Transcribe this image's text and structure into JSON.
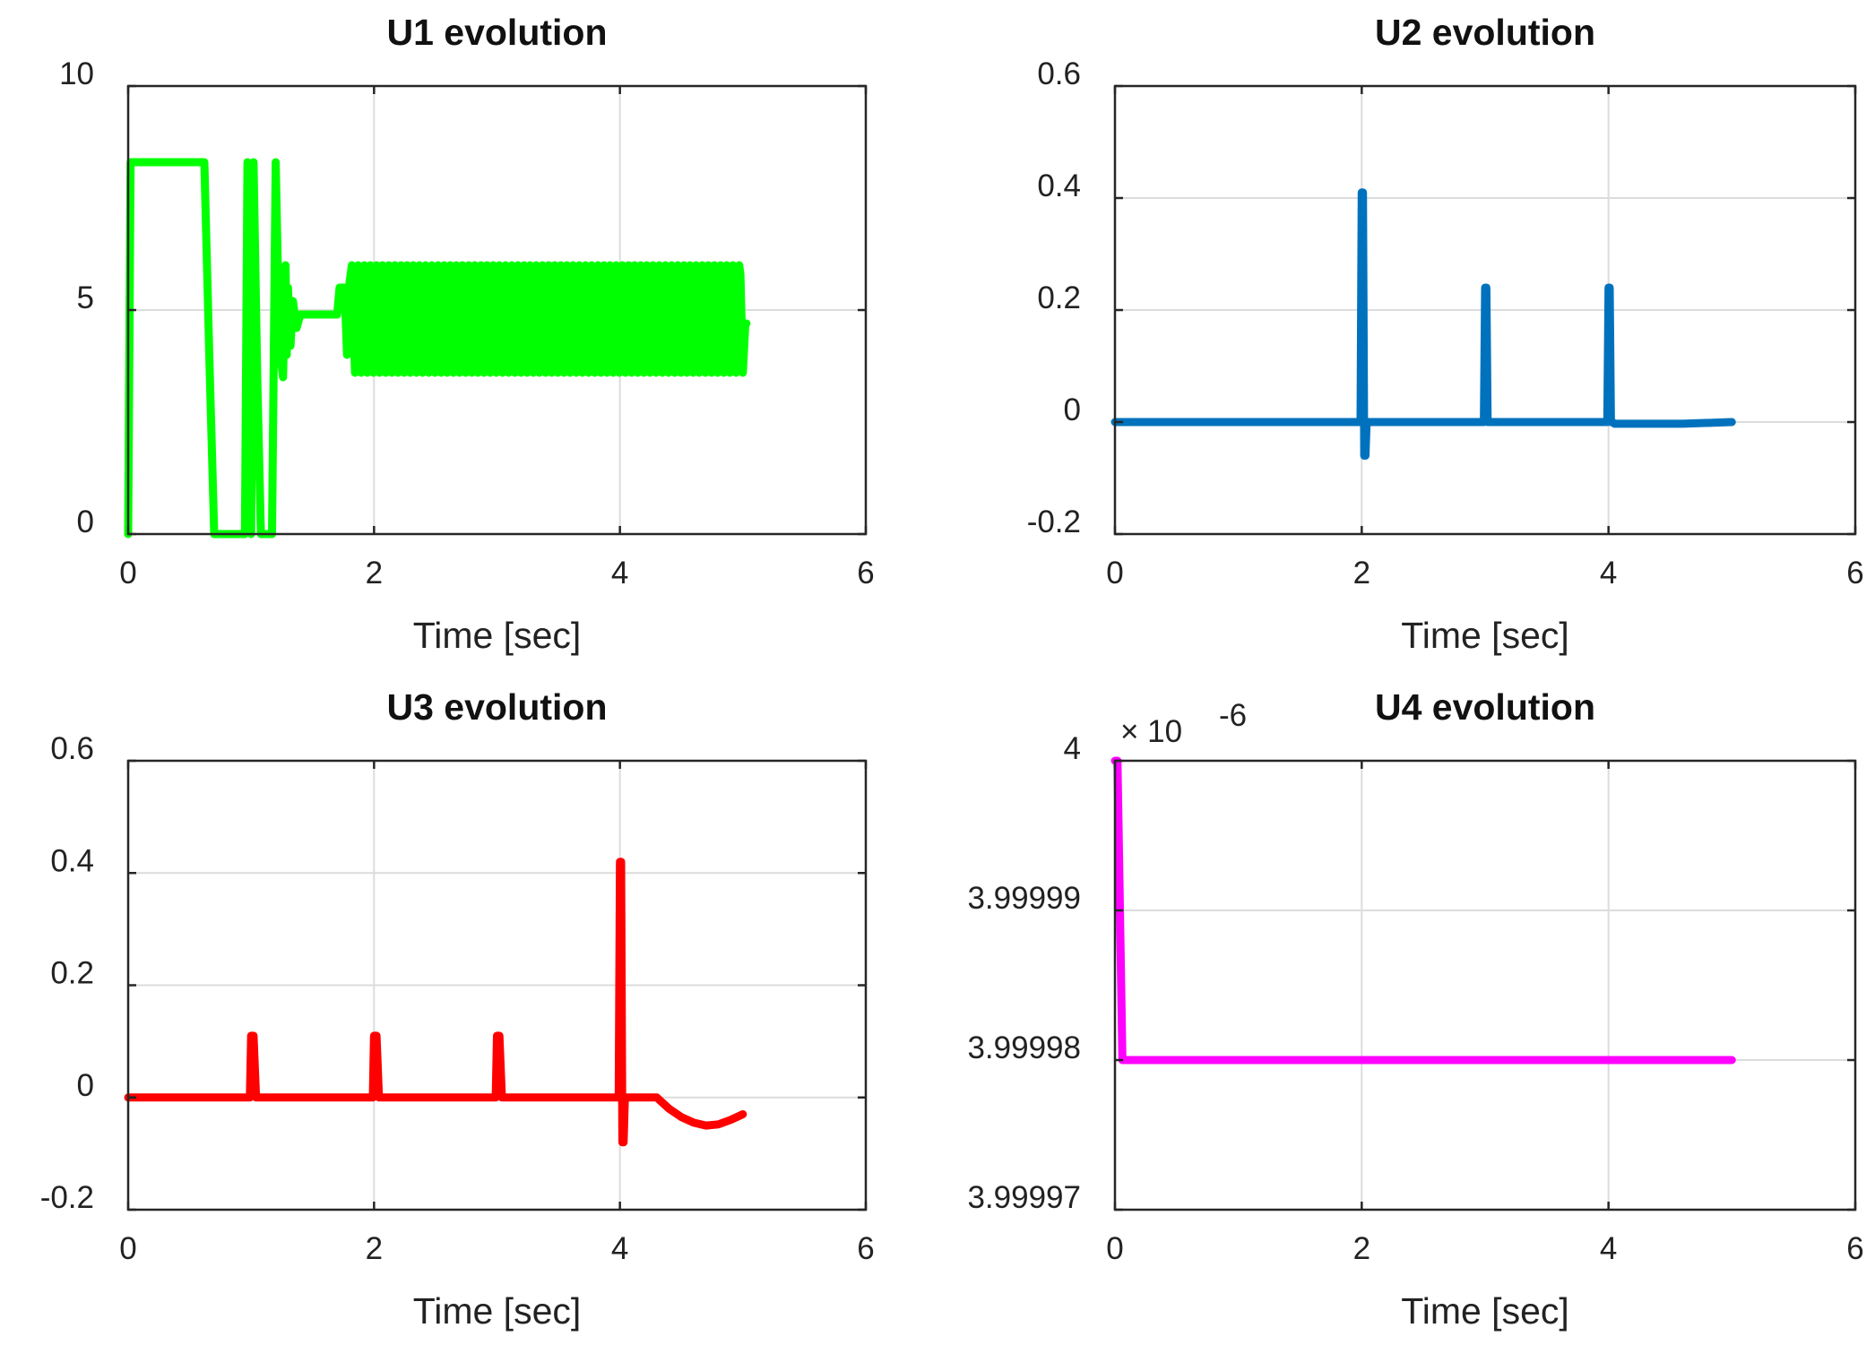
{
  "chart_data": [
    {
      "type": "line",
      "title": "U1 evolution",
      "xlabel": "Time [sec]",
      "ylabel": "",
      "xlim": [
        0,
        6
      ],
      "ylim": [
        0,
        10
      ],
      "xticks": [
        0,
        2,
        4,
        6
      ],
      "xtick_labels": [
        "0",
        "2",
        "4",
        "6"
      ],
      "yticks": [
        0,
        5,
        10
      ],
      "ytick_labels": [
        "0",
        "5",
        "10"
      ],
      "grid": true,
      "color": "#00ff00",
      "oscillation": {
        "t_start": 1.82,
        "t_end": 4.98,
        "min": 3.6,
        "max": 6.0,
        "period": 0.05
      },
      "series": [
        {
          "name": "U1",
          "x": [
            0.0,
            0.02,
            0.04,
            0.62,
            0.66,
            0.7,
            0.95,
            0.97,
            1.0,
            1.02,
            1.05,
            1.08,
            1.12,
            1.17,
            1.2,
            1.23,
            1.26,
            1.28,
            1.29,
            1.3,
            1.32,
            1.34,
            1.37,
            1.4,
            1.45,
            1.5,
            1.7,
            1.72,
            1.76,
            1.78,
            1.8,
            4.98,
            5.0,
            5.02,
            5.03
          ],
          "y": [
            0.0,
            8.3,
            8.3,
            8.3,
            4.0,
            0.0,
            0.0,
            8.3,
            0.0,
            8.3,
            3.5,
            0.0,
            0.0,
            0.0,
            8.3,
            4.2,
            3.5,
            6.0,
            4.0,
            5.5,
            4.2,
            5.2,
            4.6,
            4.9,
            4.9,
            4.9,
            4.9,
            5.5,
            5.5,
            4.0,
            5.6,
            5.8,
            3.6,
            4.7,
            4.7
          ]
        }
      ]
    },
    {
      "type": "line",
      "title": "U2 evolution",
      "xlabel": "Time [sec]",
      "ylabel": "",
      "xlim": [
        0,
        6
      ],
      "ylim": [
        -0.2,
        0.6
      ],
      "xticks": [
        0,
        2,
        4,
        6
      ],
      "xtick_labels": [
        "0",
        "2",
        "4",
        "6"
      ],
      "yticks": [
        -0.2,
        0,
        0.2,
        0.4,
        0.6
      ],
      "ytick_labels": [
        "-0.2",
        "0",
        "0.2",
        "0.4",
        "0.6"
      ],
      "grid": true,
      "color": "#0072bd",
      "series": [
        {
          "name": "U2",
          "x": [
            0.0,
            1.99,
            2.0,
            2.01,
            2.02,
            2.03,
            2.04,
            2.05,
            2.99,
            3.0,
            3.01,
            3.02,
            3.03,
            3.05,
            3.99,
            4.0,
            4.01,
            4.02,
            4.03,
            4.05,
            4.6,
            5.0
          ],
          "y": [
            0.0,
            0.0,
            0.41,
            0.41,
            -0.06,
            -0.06,
            0.0,
            0.0,
            0.0,
            0.24,
            0.24,
            0.0,
            0.0,
            0.0,
            0.0,
            0.24,
            0.24,
            0.0,
            0.0,
            -0.003,
            -0.003,
            0.0
          ]
        }
      ]
    },
    {
      "type": "line",
      "title": "U3 evolution",
      "xlabel": "Time [sec]",
      "ylabel": "",
      "xlim": [
        0,
        6
      ],
      "ylim": [
        -0.2,
        0.6
      ],
      "xticks": [
        0,
        2,
        4,
        6
      ],
      "xtick_labels": [
        "0",
        "2",
        "4",
        "6"
      ],
      "yticks": [
        -0.2,
        0,
        0.2,
        0.4,
        0.6
      ],
      "ytick_labels": [
        "-0.2",
        "0",
        "0.2",
        "0.4",
        "0.6"
      ],
      "grid": true,
      "color": "#ff0000",
      "series": [
        {
          "name": "U3",
          "x": [
            0.0,
            0.5,
            0.99,
            1.0,
            1.02,
            1.04,
            1.05,
            1.99,
            2.0,
            2.02,
            2.04,
            2.05,
            2.99,
            3.0,
            3.02,
            3.04,
            3.05,
            3.99,
            4.0,
            4.01,
            4.02,
            4.03,
            4.04,
            4.3,
            4.4,
            4.5,
            4.6,
            4.7,
            4.8,
            4.9,
            5.0
          ],
          "y": [
            0.0,
            0.0,
            0.0,
            0.11,
            0.11,
            0.0,
            0.0,
            0.0,
            0.11,
            0.11,
            0.0,
            0.0,
            0.0,
            0.11,
            0.11,
            0.0,
            0.0,
            0.0,
            0.42,
            0.42,
            -0.08,
            -0.08,
            0.0,
            0.0,
            -0.02,
            -0.035,
            -0.045,
            -0.05,
            -0.048,
            -0.04,
            -0.03
          ]
        }
      ]
    },
    {
      "type": "line",
      "title": "U4 evolution",
      "xlabel": "Time [sec]",
      "ylabel": "",
      "xlim": [
        0,
        6
      ],
      "ylim": [
        3.99997,
        4.0
      ],
      "y_offset": 3.99997,
      "y_unit": 1e-06,
      "xticks": [
        0,
        2,
        4,
        6
      ],
      "xtick_labels": [
        "0",
        "2",
        "4",
        "6"
      ],
      "yticks": [
        3.99997,
        3.99998,
        3.99999,
        4.0
      ],
      "ytick_labels": [
        "3.99997",
        "3.99998",
        "3.99999",
        "4"
      ],
      "grid": true,
      "color": "#ff00ff",
      "multiplier_label": "× 10",
      "multiplier_exponent": "-6",
      "series": [
        {
          "name": "U4",
          "x": [
            0.0,
            0.02,
            0.06,
            0.08,
            1.0,
            3.0,
            5.0
          ],
          "y_units": [
            30.0,
            30.0,
            10.0,
            10.0,
            10.0,
            10.0,
            10.0
          ]
        }
      ]
    }
  ]
}
